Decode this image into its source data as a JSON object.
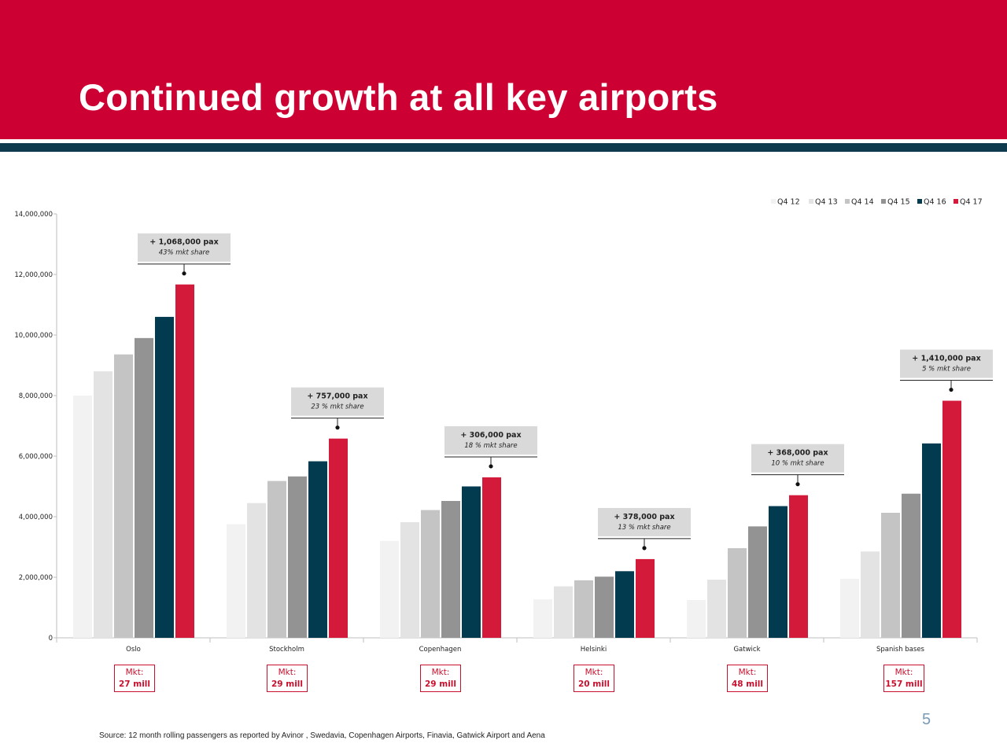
{
  "header": {
    "title": "Continued growth at all key airports"
  },
  "footer": {
    "source": "Source: 12 month rolling passengers as reported by Avinor , Swedavia, Copenhagen Airports, Finavia, Gatwick Airport and Aena",
    "page_number": "5"
  },
  "colors": {
    "banner": "#cc0033",
    "stripe": "#0f3a4d",
    "series": [
      "#f2f2f2",
      "#e3e3e3",
      "#c4c4c4",
      "#939393",
      "#023a4f",
      "#d31a3a"
    ]
  },
  "chart_data": {
    "type": "bar",
    "title": "",
    "xlabel": "",
    "ylabel": "",
    "ylim": [
      0,
      14000000
    ],
    "yticks": [
      0,
      2000000,
      4000000,
      6000000,
      8000000,
      10000000,
      12000000,
      14000000
    ],
    "ytick_labels": [
      "0",
      "2,000,000",
      "4,000,000",
      "6,000,000",
      "8,000,000",
      "10,000,000",
      "12,000,000",
      "14,000,000"
    ],
    "legend_position": "top-right",
    "categories": [
      "Oslo",
      "Stockholm",
      "Copenhagen",
      "Helsinki",
      "Gatwick",
      "Spanish bases"
    ],
    "series": [
      {
        "name": "Q4 12",
        "values": [
          8000000,
          3750000,
          3200000,
          1270000,
          1250000,
          1950000
        ]
      },
      {
        "name": "Q4 13",
        "values": [
          8800000,
          4450000,
          3820000,
          1700000,
          1920000,
          2850000
        ]
      },
      {
        "name": "Q4 14",
        "values": [
          9360000,
          5180000,
          4220000,
          1900000,
          2960000,
          4130000
        ]
      },
      {
        "name": "Q4 15",
        "values": [
          9900000,
          5330000,
          4520000,
          2020000,
          3680000,
          4760000
        ]
      },
      {
        "name": "Q4 16",
        "values": [
          10600000,
          5830000,
          5000000,
          2200000,
          4350000,
          6420000
        ]
      },
      {
        "name": "Q4 17",
        "values": [
          11670000,
          6580000,
          5300000,
          2600000,
          4710000,
          7830000
        ]
      }
    ],
    "annotations": [
      {
        "category": "Oslo",
        "text": "+ 1,068,000 pax",
        "subtext": "43% mkt share"
      },
      {
        "category": "Stockholm",
        "text": "+ 757,000 pax",
        "subtext": "23 % mkt share"
      },
      {
        "category": "Copenhagen",
        "text": "+ 306,000 pax",
        "subtext": "18 % mkt share"
      },
      {
        "category": "Helsinki",
        "text": "+ 378,000 pax",
        "subtext": "13 % mkt share"
      },
      {
        "category": "Gatwick",
        "text": "+ 368,000 pax",
        "subtext": "10 % mkt share"
      },
      {
        "category": "Spanish bases",
        "text": "+ 1,410,000 pax",
        "subtext": "5 % mkt share"
      }
    ]
  },
  "markets": [
    {
      "label": "Mkt:",
      "value": "27 mill"
    },
    {
      "label": "Mkt:",
      "value": "29 mill"
    },
    {
      "label": "Mkt:",
      "value": "29 mill"
    },
    {
      "label": "Mkt:",
      "value": "20 mill"
    },
    {
      "label": "Mkt:",
      "value": "48 mill"
    },
    {
      "label": "Mkt:",
      "value": "157 mill"
    }
  ]
}
